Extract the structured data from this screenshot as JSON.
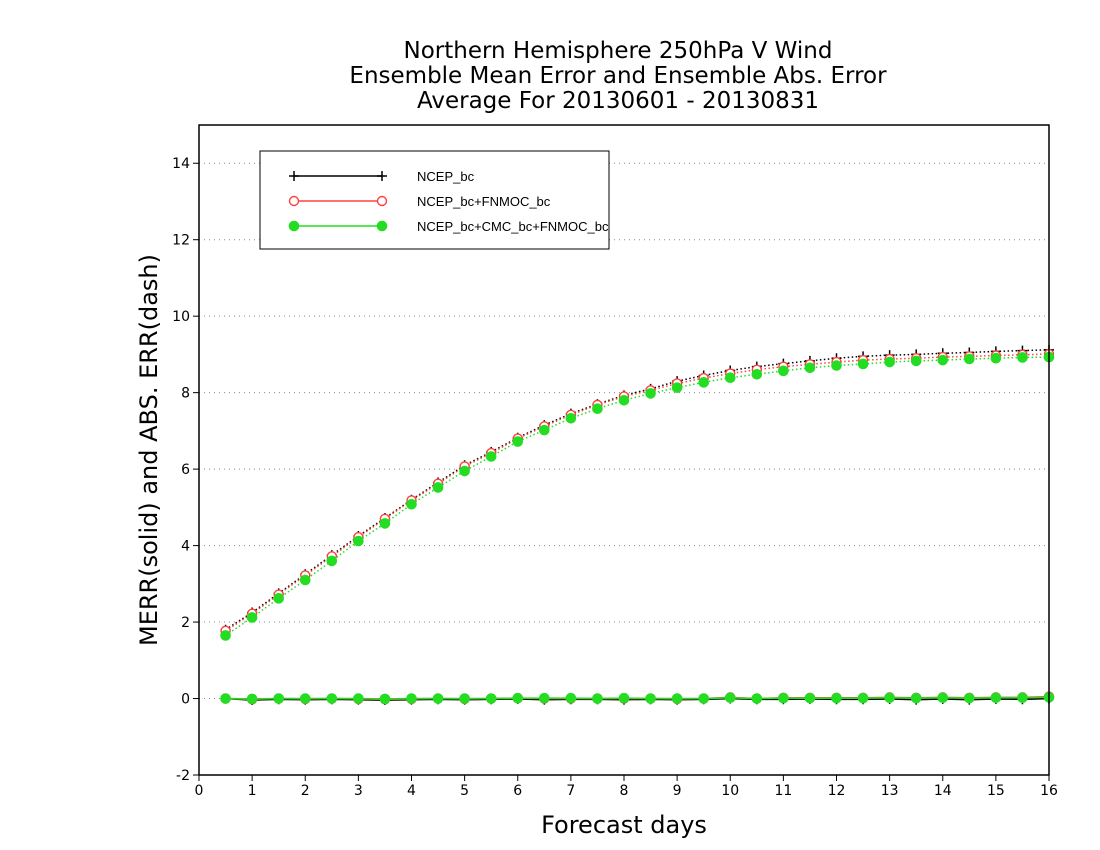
{
  "chart_data": {
    "type": "line",
    "title": [
      "Northern Hemisphere 250hPa V Wind",
      "Ensemble Mean Error and Ensemble Abs. Error",
      "Average For 20130601 - 20130831"
    ],
    "xlabel": "Forecast days",
    "ylabel": "MERR(solid) and ABS. ERR(dash)",
    "xlim": [
      0,
      16
    ],
    "ylim": [
      -2,
      15
    ],
    "xticks": [
      "0",
      "1",
      "2",
      "3",
      "4",
      "5",
      "6",
      "7",
      "8",
      "9",
      "10",
      "11",
      "12",
      "13",
      "14",
      "15",
      "16"
    ],
    "yticks": [
      "-2",
      "0",
      "2",
      "4",
      "6",
      "8",
      "10",
      "12",
      "14"
    ],
    "grid": "horizontal dotted",
    "legend_position": "top-left",
    "x": [
      0.5,
      1,
      1.5,
      2,
      2.5,
      3,
      3.5,
      4,
      4.5,
      5,
      5.5,
      6,
      6.5,
      7,
      7.5,
      8,
      8.5,
      9,
      9.5,
      10,
      10.5,
      11,
      11.5,
      12,
      12.5,
      13,
      13.5,
      14,
      14.5,
      15,
      15.5,
      16
    ],
    "series": [
      {
        "name": "NCEP_bc",
        "color": "#000000",
        "marker": "plus",
        "merr": [
          0.0,
          -0.04,
          -0.02,
          -0.03,
          -0.02,
          -0.03,
          -0.04,
          -0.03,
          -0.02,
          -0.03,
          -0.02,
          -0.01,
          -0.03,
          -0.02,
          -0.02,
          -0.03,
          -0.02,
          -0.03,
          -0.02,
          0.0,
          -0.02,
          -0.02,
          -0.01,
          -0.02,
          -0.02,
          -0.01,
          -0.03,
          -0.01,
          -0.03,
          -0.01,
          -0.02,
          0.0
        ],
        "abs_err": [
          1.8,
          2.25,
          2.75,
          3.25,
          3.75,
          4.25,
          4.72,
          5.2,
          5.65,
          6.1,
          6.45,
          6.82,
          7.15,
          7.45,
          7.7,
          7.93,
          8.1,
          8.3,
          8.45,
          8.58,
          8.68,
          8.76,
          8.83,
          8.9,
          8.95,
          8.98,
          9.0,
          9.03,
          9.05,
          9.08,
          9.1,
          9.12
        ]
      },
      {
        "name": "NCEP_bc+FNMOC_bc",
        "color": "#ff4040",
        "marker": "open-circle",
        "merr": [
          0.0,
          -0.02,
          0.0,
          -0.01,
          0.0,
          -0.01,
          -0.02,
          -0.01,
          0.0,
          -0.01,
          0.0,
          0.01,
          0.0,
          0.0,
          0.0,
          0.0,
          0.0,
          -0.01,
          0.0,
          0.03,
          0.0,
          0.02,
          0.02,
          0.02,
          0.02,
          0.03,
          0.02,
          0.03,
          0.02,
          0.03,
          0.03,
          0.05
        ],
        "abs_err": [
          1.77,
          2.22,
          2.72,
          3.22,
          3.72,
          4.22,
          4.7,
          5.18,
          5.62,
          6.07,
          6.42,
          6.8,
          7.12,
          7.42,
          7.68,
          7.9,
          8.06,
          8.24,
          8.38,
          8.5,
          8.6,
          8.68,
          8.74,
          8.8,
          8.85,
          8.88,
          8.9,
          8.93,
          8.95,
          8.97,
          8.99,
          9.01
        ]
      },
      {
        "name": "NCEP_bc+CMC_bc+FNMOC_bc",
        "color": "#22dd22",
        "marker": "filled-circle",
        "merr": [
          0.0,
          -0.01,
          0.0,
          0.0,
          0.0,
          0.0,
          -0.01,
          0.0,
          0.0,
          0.0,
          0.0,
          0.01,
          0.01,
          0.01,
          0.0,
          0.01,
          0.0,
          0.0,
          0.0,
          0.02,
          0.0,
          0.01,
          0.01,
          0.01,
          0.01,
          0.02,
          0.01,
          0.02,
          0.01,
          0.02,
          0.02,
          0.03
        ],
        "abs_err": [
          1.65,
          2.12,
          2.62,
          3.1,
          3.6,
          4.12,
          4.58,
          5.08,
          5.52,
          5.95,
          6.33,
          6.72,
          7.02,
          7.33,
          7.58,
          7.8,
          7.98,
          8.13,
          8.27,
          8.39,
          8.48,
          8.57,
          8.65,
          8.71,
          8.75,
          8.8,
          8.83,
          8.85,
          8.88,
          8.9,
          8.92,
          8.93
        ]
      }
    ]
  }
}
